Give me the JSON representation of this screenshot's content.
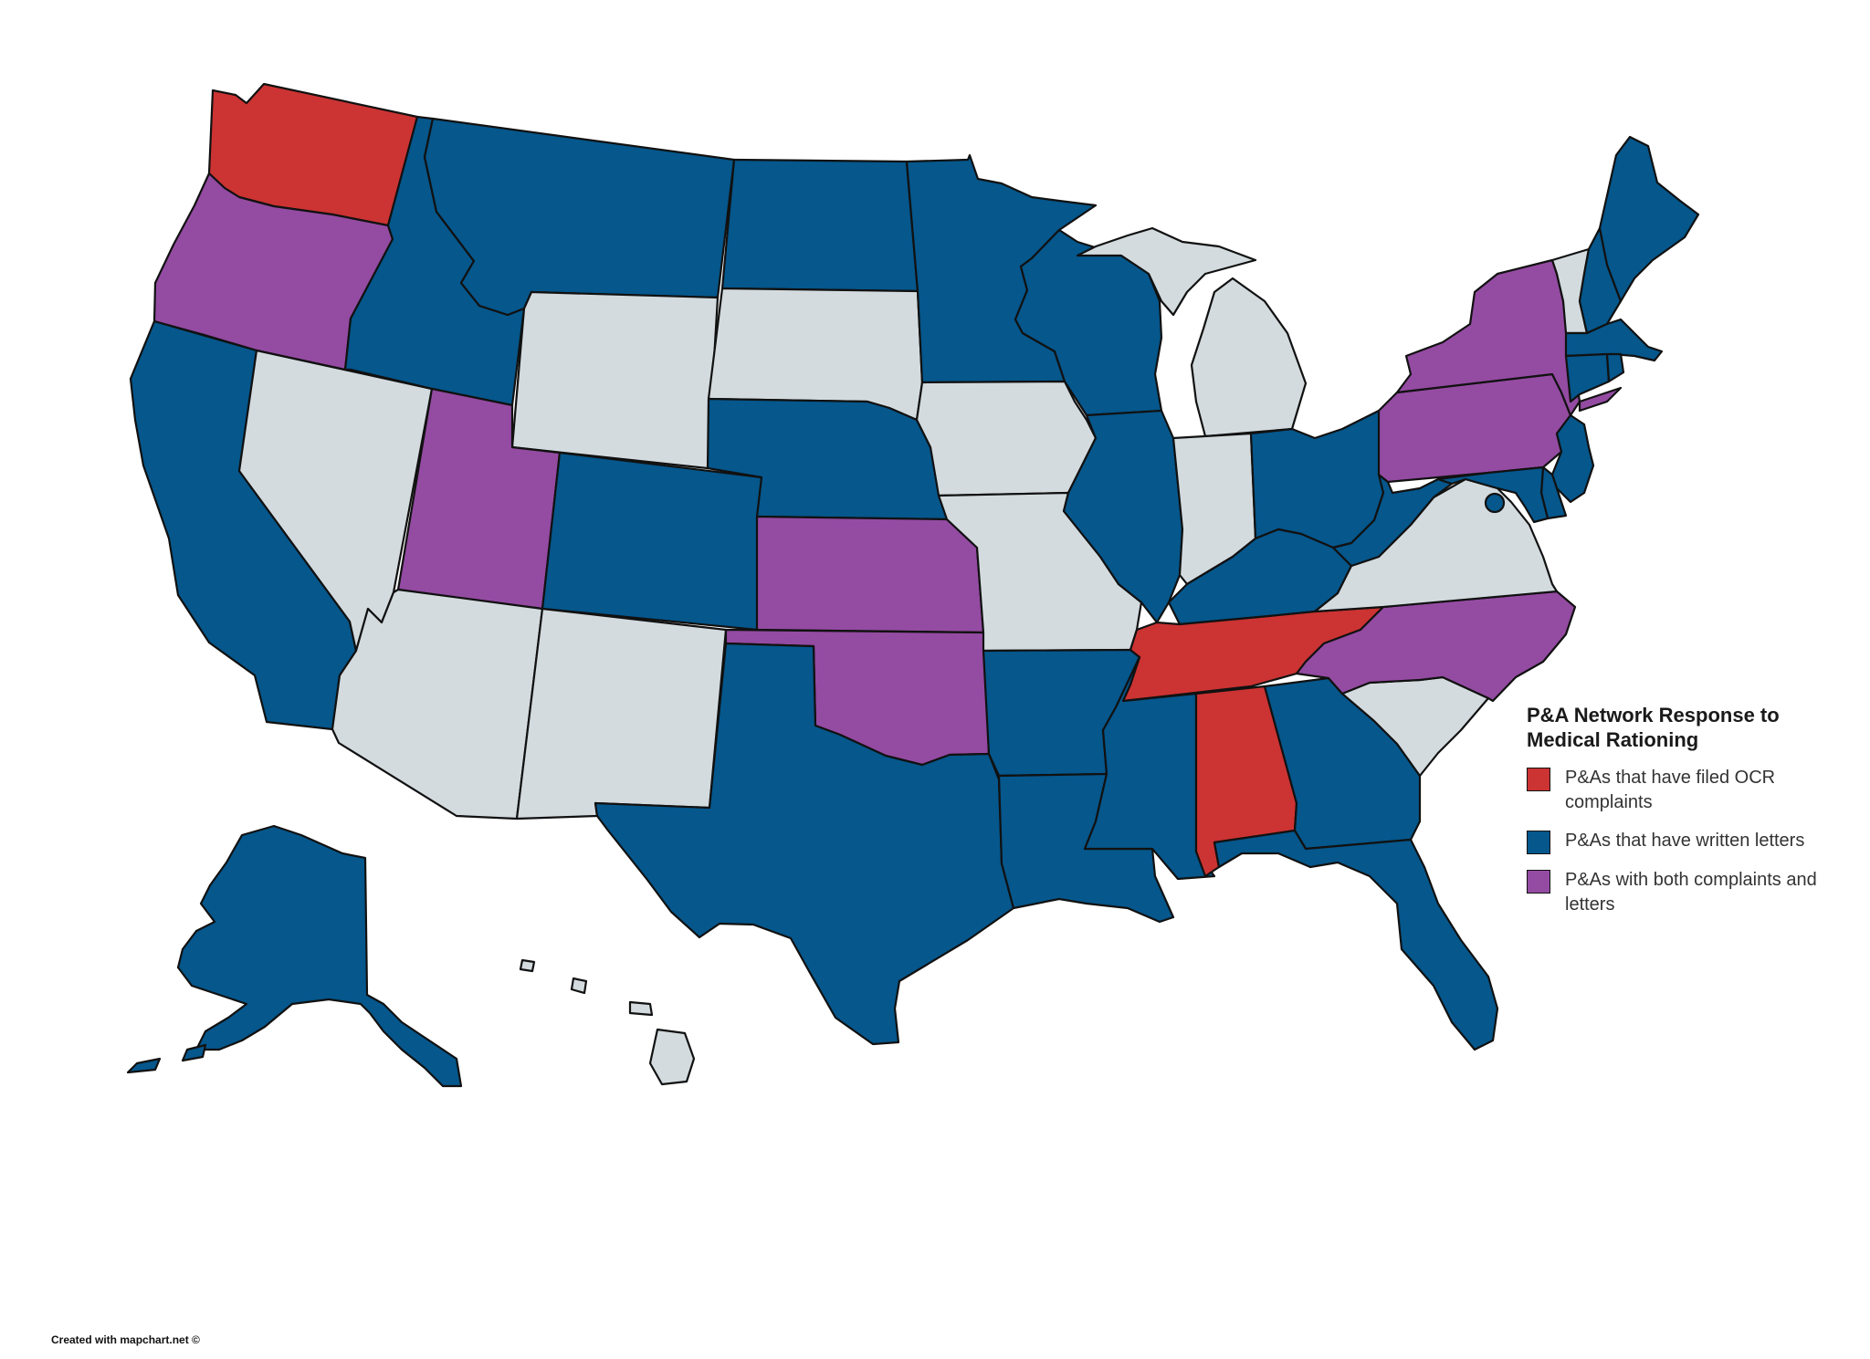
{
  "colors": {
    "complaints": "#cc3333",
    "letters": "#05578c",
    "both": "#944ba2",
    "none": "#d3dbdf",
    "border": "#111111"
  },
  "legend": {
    "title_line1": "P&A Network Response to",
    "title_line2": "Medical Rationing",
    "items": [
      {
        "category": "complaints",
        "label": "P&As that have filed OCR complaints"
      },
      {
        "category": "letters",
        "label": "P&As that have written letters"
      },
      {
        "category": "both",
        "label": "P&As with both complaints and letters"
      }
    ]
  },
  "states": {
    "WA": "complaints",
    "OR": "both",
    "CA": "letters",
    "NV": "none",
    "ID": "letters",
    "MT": "letters",
    "WY": "none",
    "UT": "both",
    "AZ": "none",
    "CO": "letters",
    "NM": "none",
    "ND": "letters",
    "SD": "none",
    "NE": "letters",
    "KS": "both",
    "OK": "both",
    "TX": "letters",
    "MN": "letters",
    "IA": "none",
    "MO": "none",
    "AR": "letters",
    "LA": "letters",
    "WI": "letters",
    "IL": "letters",
    "MI": "none",
    "IN": "none",
    "OH": "letters",
    "KY": "letters",
    "TN": "complaints",
    "MS": "letters",
    "AL": "complaints",
    "GA": "letters",
    "FL": "letters",
    "SC": "none",
    "NC": "both",
    "VA": "none",
    "WV": "letters",
    "PA": "both",
    "NY": "both",
    "VT": "none",
    "NH": "letters",
    "ME": "letters",
    "MA": "letters",
    "CT": "letters",
    "RI": "letters",
    "NJ": "letters",
    "DE": "letters",
    "MD": "letters",
    "DC": "letters",
    "AK": "letters",
    "HI": "none"
  },
  "credit": "Created with mapchart.net ©"
}
